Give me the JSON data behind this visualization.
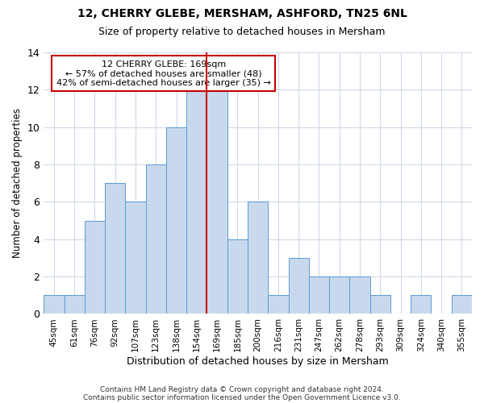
{
  "title1": "12, CHERRY GLEBE, MERSHAM, ASHFORD, TN25 6NL",
  "title2": "Size of property relative to detached houses in Mersham",
  "xlabel": "Distribution of detached houses by size in Mersham",
  "ylabel": "Number of detached properties",
  "categories": [
    "45sqm",
    "61sqm",
    "76sqm",
    "92sqm",
    "107sqm",
    "123sqm",
    "138sqm",
    "154sqm",
    "169sqm",
    "185sqm",
    "200sqm",
    "216sqm",
    "231sqm",
    "247sqm",
    "262sqm",
    "278sqm",
    "293sqm",
    "309sqm",
    "324sqm",
    "340sqm",
    "355sqm"
  ],
  "values": [
    1,
    1,
    5,
    7,
    6,
    8,
    10,
    12,
    12,
    4,
    6,
    1,
    3,
    2,
    2,
    2,
    1,
    0,
    1,
    0,
    1
  ],
  "bar_color": "#c9d9ed",
  "bar_edgecolor": "#5b9bd5",
  "vline_color": "#cc0000",
  "annotation_text": "12 CHERRY GLEBE: 169sqm\n← 57% of detached houses are smaller (48)\n42% of semi-detached houses are larger (35) →",
  "annotation_box_edgecolor": "#cc0000",
  "annotation_box_facecolor": "#ffffff",
  "ylim": [
    0,
    14
  ],
  "yticks": [
    0,
    2,
    4,
    6,
    8,
    10,
    12,
    14
  ],
  "footer1": "Contains HM Land Registry data © Crown copyright and database right 2024.",
  "footer2": "Contains public sector information licensed under the Open Government Licence v3.0.",
  "background_color": "#ffffff",
  "grid_color": "#d0d8e8"
}
